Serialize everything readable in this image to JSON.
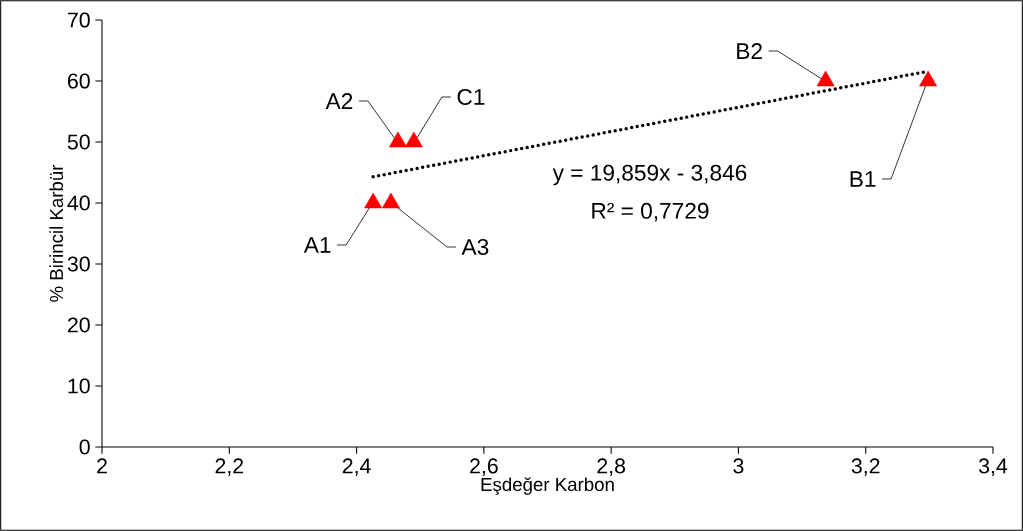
{
  "chart_data": {
    "type": "scatter",
    "xlabel": "Eşdeğer Karbon",
    "ylabel": "% Birincil Karbür",
    "series": [
      {
        "color": "#ff0000",
        "marker": "triangle",
        "x": [
          2.426,
          2.465,
          2.454,
          2.49,
          3.298,
          3.137
        ],
        "values": [
          40,
          50,
          40,
          50,
          60,
          60
        ]
      },
      {
        "type": "line",
        "color": "#000000",
        "line_style": "dotted",
        "x": [
          2.426,
          3.298
        ],
        "values": [
          44.3,
          61.6
        ]
      }
    ],
    "xlim": [
      2,
      3.4
    ],
    "ylim": [
      0,
      70
    ],
    "xticks": [
      2,
      {
        "value": 2.2,
        "label": "2,2"
      },
      {
        "value": 2.4,
        "label": "2,4"
      },
      {
        "value": 2.6,
        "label": "2,6"
      },
      {
        "value": 2.8,
        "label": "2,8"
      },
      3,
      {
        "value": 3.2,
        "label": "3,2"
      },
      {
        "value": 3.4,
        "label": "3,4"
      }
    ],
    "yticks": [
      0,
      10,
      20,
      30,
      40,
      50,
      60,
      70
    ],
    "annotations": [
      {
        "text": "A1",
        "x": 2.426,
        "y": 40
      },
      {
        "text": "A2",
        "x": 2.465,
        "y": 50
      },
      {
        "text": "A3",
        "x": 2.454,
        "y": 40
      },
      {
        "text": "C1",
        "x": 2.49,
        "y": 50
      },
      {
        "text": "B1",
        "x": 3.298,
        "y": 60
      },
      {
        "text": "B2",
        "x": 3.137,
        "y": 60
      },
      "y = 19,859x - 3,846",
      "R² = 0,7729"
    ]
  }
}
